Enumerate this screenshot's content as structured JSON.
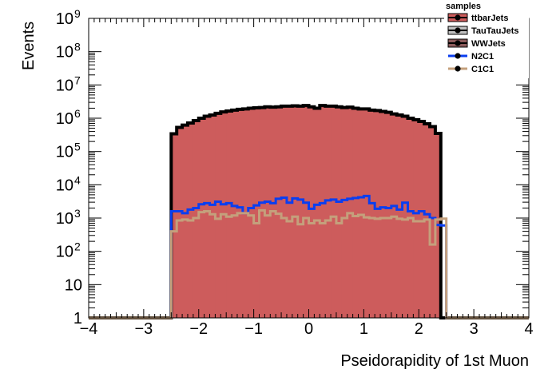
{
  "chart_data": {
    "type": "histogram",
    "xlabel": "Pseidorapidity of 1st Muon",
    "ylabel": "Events",
    "xlim": [
      -4,
      4
    ],
    "ylim": [
      1,
      1000000000
    ],
    "yscale": "log",
    "x_ticks": [
      {
        "value": -4,
        "label": "−4"
      },
      {
        "value": -3,
        "label": "−3"
      },
      {
        "value": -2,
        "label": "−2"
      },
      {
        "value": -1,
        "label": "−1"
      },
      {
        "value": 0,
        "label": "0"
      },
      {
        "value": 1,
        "label": "1"
      },
      {
        "value": 2,
        "label": "2"
      },
      {
        "value": 3,
        "label": "3"
      },
      {
        "value": 4,
        "label": "4"
      }
    ],
    "y_ticks": [
      {
        "value": 1,
        "label": "1",
        "exp": ""
      },
      {
        "value": 10,
        "label": "10",
        "exp": ""
      },
      {
        "value": 100,
        "label": "10",
        "exp": "2"
      },
      {
        "value": 1000,
        "label": "10",
        "exp": "3"
      },
      {
        "value": 10000,
        "label": "10",
        "exp": "4"
      },
      {
        "value": 100000,
        "label": "10",
        "exp": "5"
      },
      {
        "value": 1000000,
        "label": "10",
        "exp": "6"
      },
      {
        "value": 10000000,
        "label": "10",
        "exp": "7"
      },
      {
        "value": 100000000,
        "label": "10",
        "exp": "8"
      },
      {
        "value": 1000000000,
        "label": "10",
        "exp": "9"
      }
    ],
    "bin_edges": [
      -4.0,
      -3.9,
      -3.8,
      -3.7,
      -3.6,
      -3.5,
      -3.4,
      -3.3,
      -3.2,
      -3.1,
      -3.0,
      -2.9,
      -2.8,
      -2.7,
      -2.6,
      -2.5,
      -2.4,
      -2.3,
      -2.2,
      -2.1,
      -2.0,
      -1.9,
      -1.8,
      -1.7,
      -1.6,
      -1.5,
      -1.4,
      -1.3,
      -1.2,
      -1.1,
      -1.0,
      -0.9,
      -0.8,
      -0.7,
      -0.6,
      -0.5,
      -0.4,
      -0.3,
      -0.2,
      -0.1,
      0.0,
      0.1,
      0.2,
      0.3,
      0.4,
      0.5,
      0.6,
      0.7,
      0.8,
      0.9,
      1.0,
      1.1,
      1.2,
      1.3,
      1.4,
      1.5,
      1.6,
      1.7,
      1.8,
      1.9,
      2.0,
      2.1,
      2.2,
      2.3,
      2.4,
      2.5,
      2.6,
      2.7,
      2.8,
      2.9,
      3.0,
      3.1,
      3.2,
      3.3,
      3.4,
      3.5,
      3.6,
      3.7,
      3.8,
      3.9,
      4.0
    ],
    "legend_title": "samples",
    "legend_position": "top-right",
    "series": [
      {
        "name": "ttbarJets",
        "style": "filled",
        "fill": "#cd5c5c",
        "line": "#000000",
        "values": [
          1,
          1,
          1,
          1,
          1,
          1,
          1,
          1,
          1,
          1,
          1,
          1,
          1,
          1,
          1,
          340000,
          530000,
          620000,
          720000,
          850000,
          1000000,
          1150000,
          1250000,
          1400000,
          1550000,
          1650000,
          1750000,
          1850000,
          1900000,
          2000000,
          2050000,
          2100000,
          2200000,
          2150000,
          2200000,
          2300000,
          2300000,
          2350000,
          2300000,
          2400000,
          2200000,
          2000000,
          2400000,
          2300000,
          2300000,
          2200000,
          2100000,
          2150000,
          2000000,
          1900000,
          1900000,
          1750000,
          1700000,
          1600000,
          1500000,
          1350000,
          1250000,
          1150000,
          1000000,
          900000,
          800000,
          680000,
          560000,
          350000,
          1,
          1,
          1,
          1,
          1,
          1,
          1,
          1,
          1,
          1,
          1,
          1,
          1,
          1,
          1,
          1
        ]
      },
      {
        "name": "TauTauJets",
        "style": "marker",
        "color": "#c0c0c0",
        "values": []
      },
      {
        "name": "WWJets",
        "style": "marker",
        "color": "#8b5a5a",
        "values": []
      },
      {
        "name": "N2C1",
        "style": "step",
        "color": "#0a3ef0",
        "values": [
          1,
          1,
          1,
          1,
          1,
          1,
          1,
          1,
          1,
          1,
          1,
          1,
          1,
          1,
          1,
          1600,
          1600,
          1400,
          1800,
          2000,
          2600,
          2800,
          2500,
          3100,
          2600,
          2800,
          2300,
          2100,
          1400,
          2000,
          2400,
          2900,
          3100,
          2800,
          3800,
          4100,
          2900,
          3900,
          3600,
          2900,
          1900,
          2500,
          2800,
          3400,
          3600,
          3100,
          3500,
          3800,
          4000,
          4200,
          4600,
          2800,
          1900,
          2100,
          2000,
          2300,
          1800,
          2900,
          1600,
          1400,
          1600,
          1300,
          1000,
          620,
          600,
          1,
          1,
          1,
          1,
          1,
          1,
          1,
          1,
          1,
          1,
          1,
          1,
          1,
          1,
          1
        ]
      },
      {
        "name": "C1C1",
        "style": "step",
        "color": "#c4a07c",
        "values": [
          1,
          1,
          1,
          1,
          1,
          1,
          1,
          1,
          1,
          1,
          1,
          1,
          1,
          1,
          1,
          400,
          850,
          900,
          850,
          1000,
          1500,
          1600,
          1300,
          950,
          1300,
          1100,
          1200,
          1400,
          1400,
          1200,
          700,
          1700,
          1200,
          1600,
          1350,
          1000,
          800,
          1100,
          650,
          1000,
          700,
          850,
          700,
          850,
          1100,
          700,
          1000,
          1400,
          1150,
          1250,
          1050,
          1000,
          950,
          1000,
          1000,
          1100,
          950,
          900,
          1000,
          800,
          800,
          900,
          160,
          900,
          960,
          1,
          1,
          1,
          1,
          1,
          1,
          1,
          1,
          1,
          1,
          1,
          1,
          1,
          1,
          1
        ]
      }
    ]
  }
}
